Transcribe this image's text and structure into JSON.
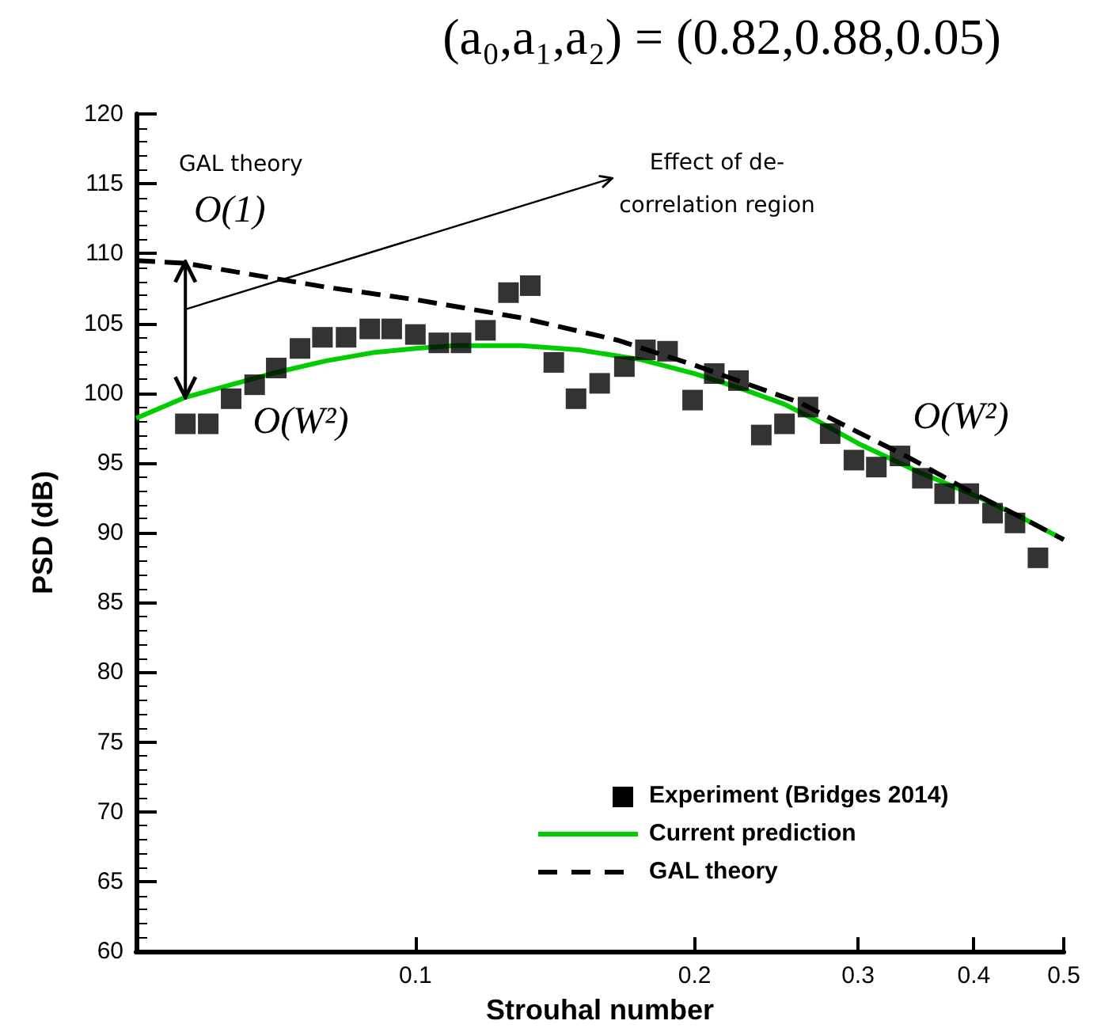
{
  "chart_data": {
    "type": "scatter",
    "title": "(a₀,a₁,a₂) = (0.82,0.88,0.05)",
    "xlabel": "Strouhal number",
    "ylabel": "PSD (dB)",
    "log": "x",
    "xlim": [
      0.05,
      0.5
    ],
    "xticks": [
      0.1,
      0.2,
      0.3,
      0.4,
      0.5
    ],
    "ylim": [
      60,
      120
    ],
    "yticks": [
      60,
      65,
      70,
      75,
      80,
      85,
      90,
      95,
      100,
      105,
      110,
      115,
      120
    ],
    "grid": false,
    "legend": "bottom right",
    "series": [
      {
        "name": "Experiment (Bridges 2014)",
        "marker": "square",
        "color": "#000000",
        "x": [
          0.0565,
          0.0598,
          0.0633,
          0.0671,
          0.0708,
          0.0751,
          0.0794,
          0.0842,
          0.0893,
          0.0943,
          0.1,
          0.106,
          0.112,
          0.119,
          0.126,
          0.133,
          0.141,
          0.149,
          0.158,
          0.168,
          0.177,
          0.187,
          0.199,
          0.21,
          0.223,
          0.236,
          0.25,
          0.265,
          0.28,
          0.297,
          0.314,
          0.333,
          0.352,
          0.372,
          0.395,
          0.419,
          0.443,
          0.469
        ],
        "values": [
          97.8,
          97.8,
          99.6,
          100.6,
          101.8,
          103.2,
          104.0,
          104.0,
          104.6,
          104.6,
          104.2,
          103.6,
          103.6,
          104.5,
          107.2,
          107.7,
          102.2,
          99.6,
          100.7,
          101.9,
          103.1,
          103.0,
          99.5,
          101.4,
          100.9,
          97.0,
          97.8,
          99.0,
          97.1,
          95.2,
          94.7,
          95.5,
          93.9,
          92.8,
          92.8,
          91.4,
          90.7,
          88.2
        ]
      },
      {
        "name": "Current prediction",
        "type": "line",
        "marker": "none",
        "color": "#00cc00",
        "line_style": "solid",
        "x": [
          0.05,
          0.0565,
          0.0633,
          0.07,
          0.08,
          0.09,
          0.1,
          0.11,
          0.12,
          0.13,
          0.15,
          0.175,
          0.2,
          0.225,
          0.25,
          0.275,
          0.3,
          0.35,
          0.4,
          0.45,
          0.5
        ],
        "values": [
          98.2,
          99.7,
          100.6,
          101.4,
          102.3,
          102.9,
          103.2,
          103.4,
          103.4,
          103.4,
          103.1,
          102.4,
          101.4,
          100.3,
          99.2,
          97.8,
          96.4,
          94.3,
          92.7,
          91.1,
          89.5
        ]
      },
      {
        "name": "GAL theory",
        "type": "line",
        "marker": "none",
        "color": "#000000",
        "line_style": "dashed",
        "x": [
          0.05,
          0.0565,
          0.08,
          0.1,
          0.13,
          0.165,
          0.2,
          0.26,
          0.3,
          0.34,
          0.4,
          0.45,
          0.5
        ],
        "values": [
          109.5,
          109.3,
          107.6,
          106.7,
          105.4,
          103.8,
          102.0,
          99.3,
          97.2,
          95.4,
          92.8,
          91.1,
          89.5
        ]
      }
    ],
    "annotations": [
      "GAL theory",
      {
        "text": "O(1)",
        "x": 0.0565,
        "y": 109.4
      },
      "O(W²)",
      "O(W²)",
      "Effect of de-",
      "correlation region"
    ]
  }
}
